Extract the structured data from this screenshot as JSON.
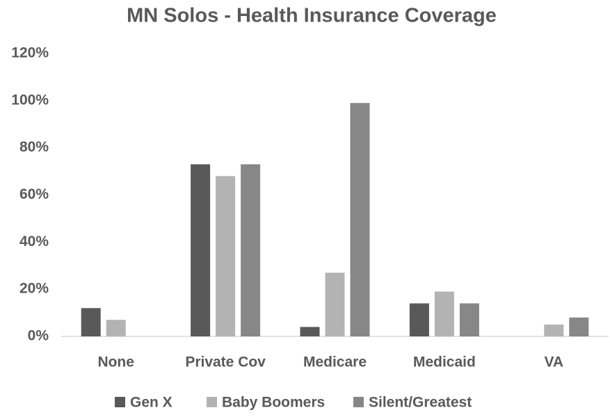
{
  "chart_data": {
    "type": "bar",
    "title": "MN Solos - Health Insurance Coverage",
    "categories": [
      "None",
      "Private Cov",
      "Medicare",
      "Medicaid",
      "VA"
    ],
    "series": [
      {
        "name": "Gen X",
        "color": "#595959",
        "values": [
          12,
          73,
          4,
          14,
          0
        ]
      },
      {
        "name": "Baby Boomers",
        "color": "#b3b3b3",
        "values": [
          7,
          68,
          27,
          19,
          5
        ]
      },
      {
        "name": "Silent/Greatest",
        "color": "#878787",
        "values": [
          0,
          73,
          99,
          14,
          8
        ]
      }
    ],
    "ylim": [
      0,
      120
    ],
    "yticks": [
      {
        "value": 0,
        "label": "0%"
      },
      {
        "value": 20,
        "label": "20%"
      },
      {
        "value": 40,
        "label": "40%"
      },
      {
        "value": 60,
        "label": "60%"
      },
      {
        "value": 80,
        "label": "80%"
      },
      {
        "value": 100,
        "label": "100%"
      },
      {
        "value": 120,
        "label": "120%"
      }
    ],
    "grid": false,
    "legend": "bottom"
  }
}
